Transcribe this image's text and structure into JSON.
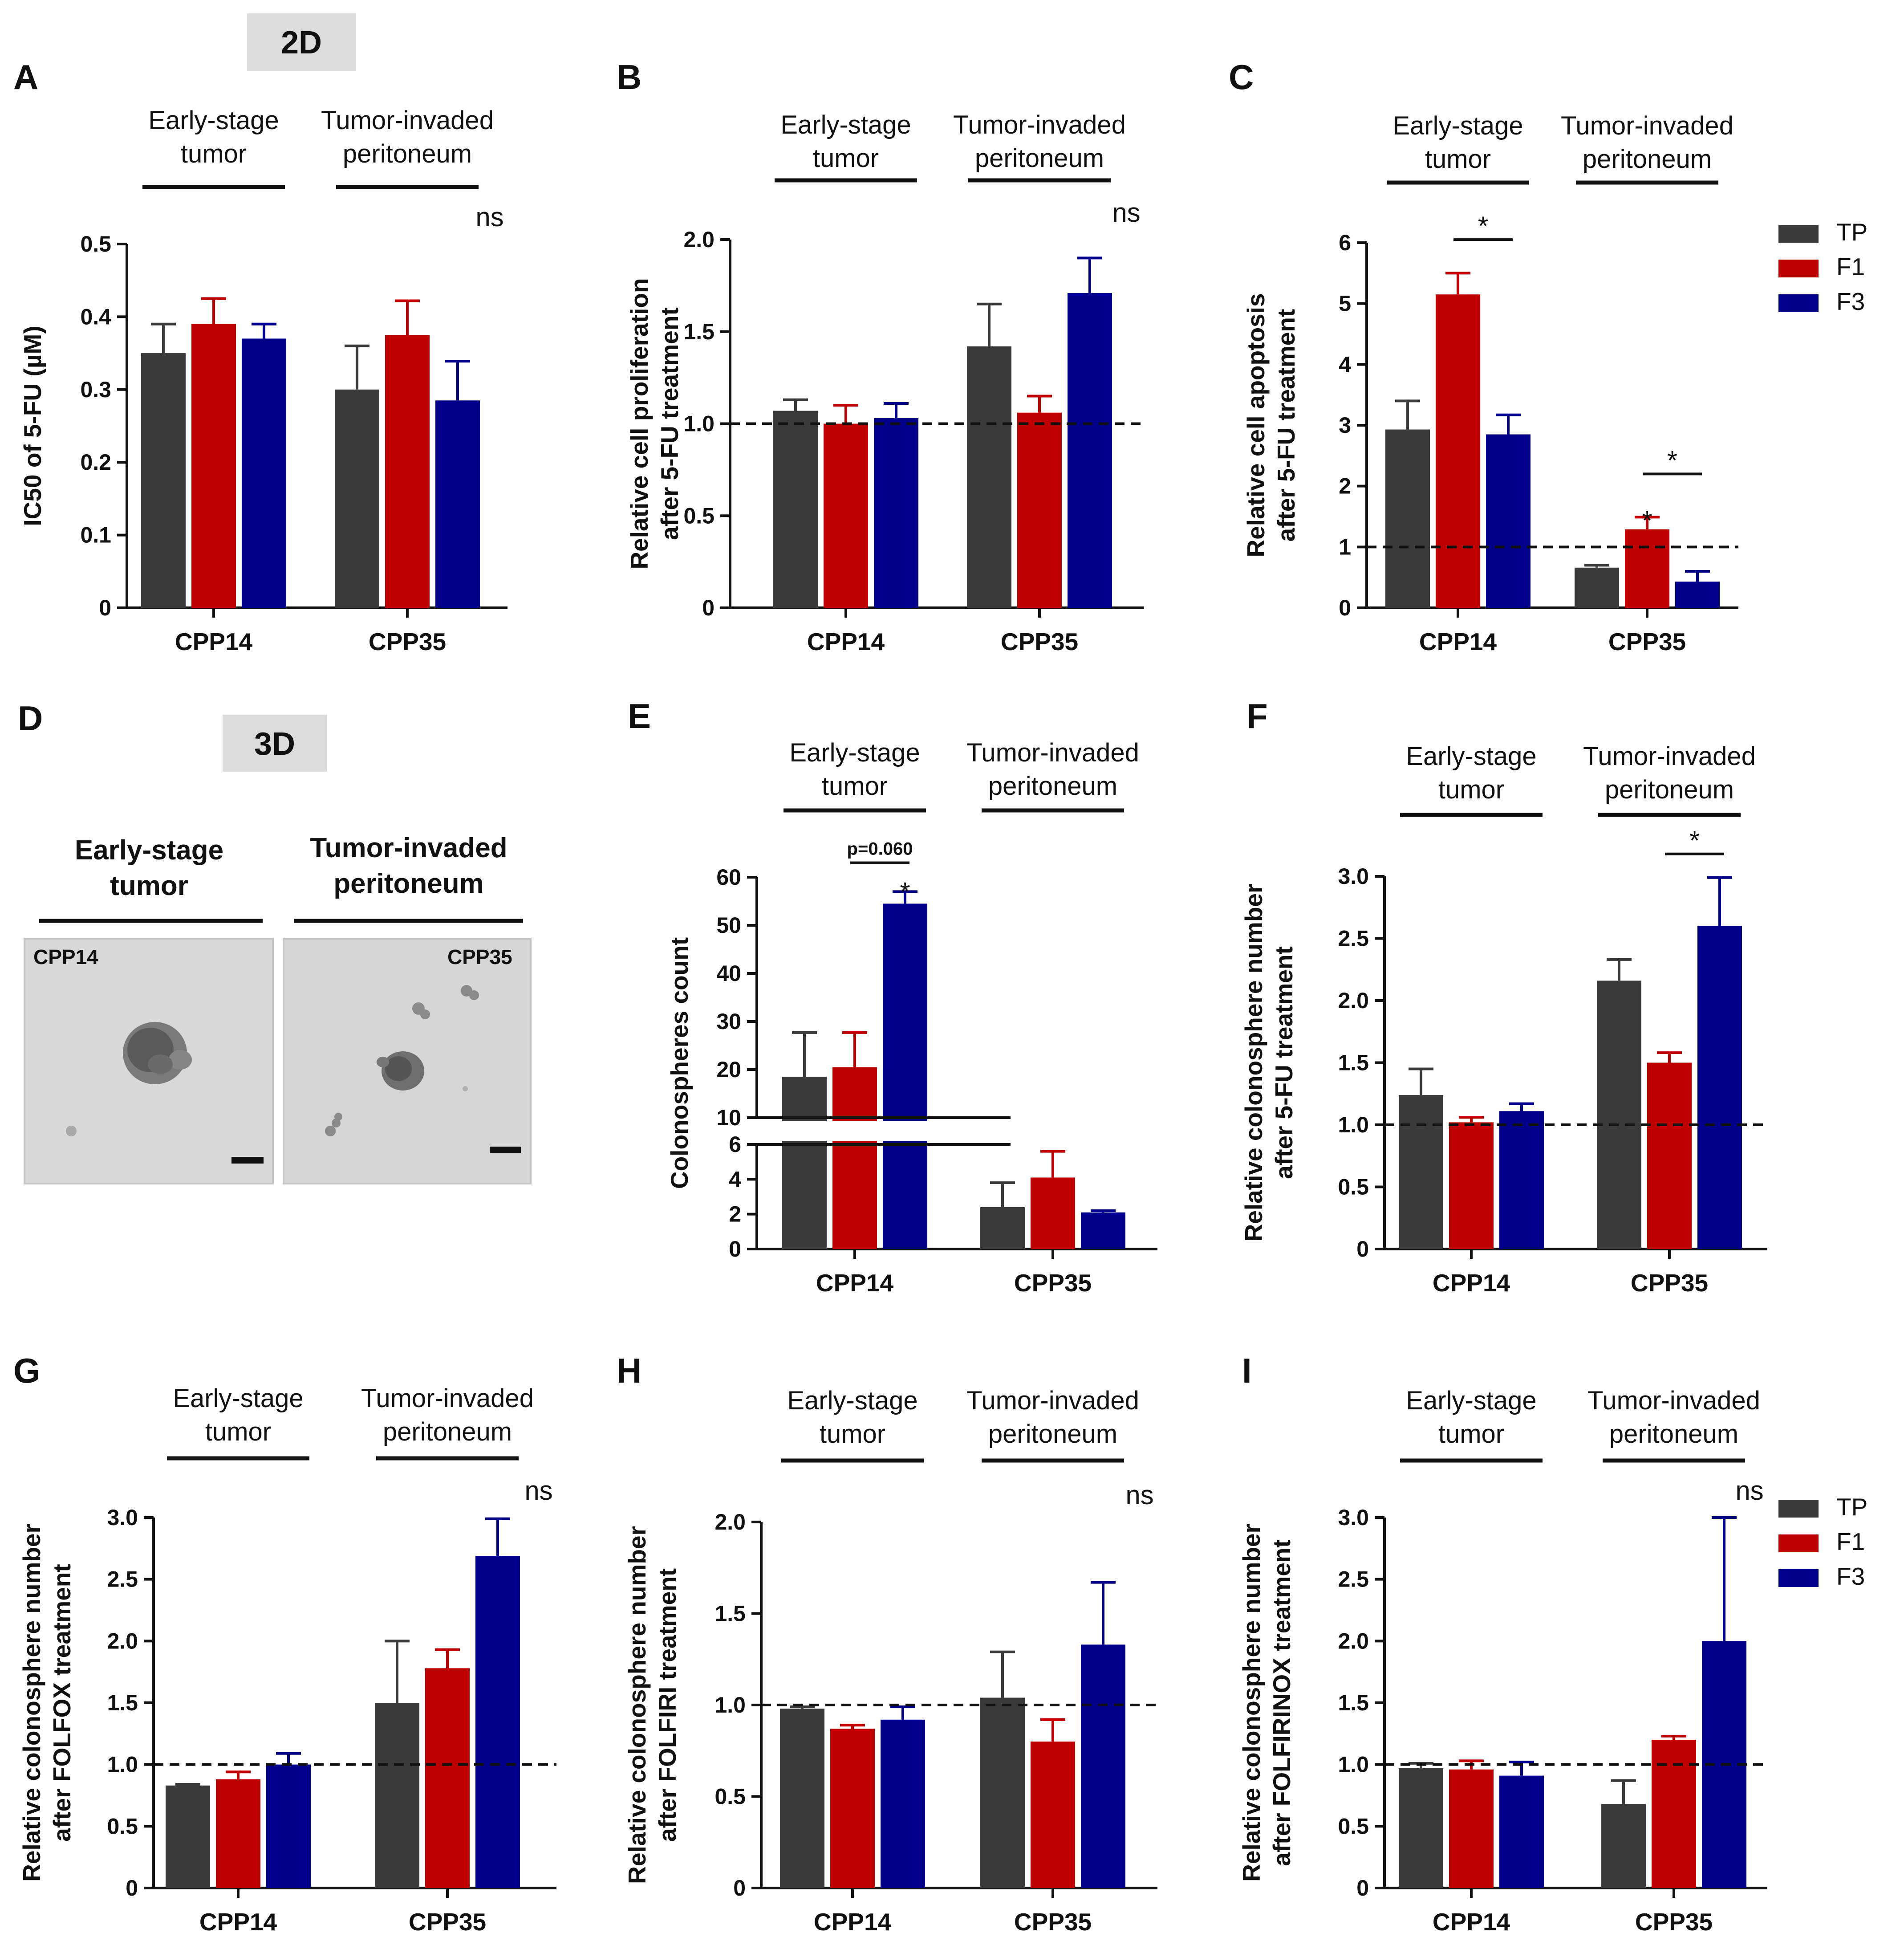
{
  "figure": {
    "mode_2d": "2D",
    "mode_3d": "3D",
    "group_early_l1": "Early-stage",
    "group_early_l2": "tumor",
    "group_invaded_l1": "Tumor-invaded",
    "group_invaded_l2": "peritoneum",
    "legend": [
      {
        "label": "TP",
        "color": "#3a3a3a"
      },
      {
        "label": "F1",
        "color": "#c00000"
      },
      {
        "label": "F3",
        "color": "#00008b"
      }
    ],
    "colors": {
      "TP": "#3a3a3a",
      "F1": "#c00000",
      "F3": "#00008b"
    }
  },
  "panel_d": {
    "letter": "D",
    "col1_l1": "Early-stage",
    "col1_l2": "tumor",
    "col2_l1": "Tumor-invaded",
    "col2_l2": "peritoneum",
    "image1_label": "CPP14",
    "image2_label": "CPP35"
  },
  "chart_data": [
    {
      "panel": "A",
      "type": "bar",
      "categories": [
        "CPP14",
        "CPP35"
      ],
      "series": [
        {
          "name": "TP",
          "values": [
            0.35,
            0.3
          ],
          "errors": [
            0.04,
            0.06
          ]
        },
        {
          "name": "F1",
          "values": [
            0.39,
            0.375
          ],
          "errors": [
            0.035,
            0.047
          ]
        },
        {
          "name": "F3",
          "values": [
            0.37,
            0.285
          ],
          "errors": [
            0.02,
            0.054
          ]
        }
      ],
      "ylabel": "IC50 of 5-FU (µM)",
      "ylim": [
        0,
        0.5
      ],
      "yticks": [
        {
          "v": 0,
          "t": "0"
        },
        {
          "v": 0.1,
          "t": "0.1"
        },
        {
          "v": 0.2,
          "t": "0.2"
        },
        {
          "v": 0.3,
          "t": "0.3"
        },
        {
          "v": 0.4,
          "t": "0.4"
        },
        {
          "v": 0.5,
          "t": "0.5"
        }
      ],
      "refline": null,
      "annotations": [
        {
          "type": "text",
          "text": "ns",
          "group": 1
        }
      ]
    },
    {
      "panel": "B",
      "type": "bar",
      "categories": [
        "CPP14",
        "CPP35"
      ],
      "series": [
        {
          "name": "TP",
          "values": [
            1.07,
            1.42
          ],
          "errors": [
            0.06,
            0.23
          ]
        },
        {
          "name": "F1",
          "values": [
            1.0,
            1.06
          ],
          "errors": [
            0.1,
            0.09
          ]
        },
        {
          "name": "F3",
          "values": [
            1.03,
            1.71
          ],
          "errors": [
            0.08,
            0.19
          ]
        }
      ],
      "ylabel": "Relative cell proliferation\nafter 5-FU treatment",
      "ylim": [
        0,
        2.0
      ],
      "yticks": [
        {
          "v": 0,
          "t": "0"
        },
        {
          "v": 0.5,
          "t": "0.5"
        },
        {
          "v": 1.0,
          "t": "1.0"
        },
        {
          "v": 1.5,
          "t": "1.5"
        },
        {
          "v": 2.0,
          "t": "2.0"
        }
      ],
      "refline": 1.0,
      "annotations": [
        {
          "type": "text",
          "text": "ns",
          "group": 1
        }
      ]
    },
    {
      "panel": "C",
      "type": "bar",
      "categories": [
        "CPP14",
        "CPP35"
      ],
      "series": [
        {
          "name": "TP",
          "values": [
            2.93,
            0.66
          ],
          "errors": [
            0.47,
            0.04
          ]
        },
        {
          "name": "F1",
          "values": [
            5.15,
            1.29
          ],
          "errors": [
            0.35,
            0.2
          ]
        },
        {
          "name": "F3",
          "values": [
            2.85,
            0.43
          ],
          "errors": [
            0.32,
            0.17
          ]
        }
      ],
      "ylabel": "Relative cell apoptosis\nafter 5-FU treatment",
      "ylim": [
        0,
        6
      ],
      "yticks": [
        {
          "v": 0,
          "t": "0"
        },
        {
          "v": 1,
          "t": "1"
        },
        {
          "v": 2,
          "t": "2"
        },
        {
          "v": 3,
          "t": "3"
        },
        {
          "v": 4,
          "t": "4"
        },
        {
          "v": 5,
          "t": "5"
        },
        {
          "v": 6,
          "t": "6"
        }
      ],
      "refline": 1.0,
      "annotations": [
        {
          "type": "bracket",
          "text": "*",
          "group": 0,
          "from": 1,
          "to": 2,
          "y": 6.05
        },
        {
          "type": "star",
          "text": "*",
          "group": 1,
          "bar": 1,
          "y": 1.52
        },
        {
          "type": "bracket",
          "text": "*",
          "group": 1,
          "from": 1,
          "to": 2,
          "y": 2.2
        }
      ]
    },
    {
      "panel": "E",
      "type": "bar",
      "categories": [
        "CPP14",
        "CPP35"
      ],
      "series": [
        {
          "name": "TP",
          "values": [
            18.5,
            2.4
          ],
          "errors": [
            9.2,
            1.4
          ]
        },
        {
          "name": "F1",
          "values": [
            20.5,
            4.1
          ],
          "errors": [
            7.2,
            1.5
          ]
        },
        {
          "name": "F3",
          "values": [
            54.5,
            2.1
          ],
          "errors": [
            2.5,
            0.1
          ]
        }
      ],
      "ylabel": "Colonospheres count",
      "broken_axis": {
        "lower": [
          0,
          6
        ],
        "upper": [
          10,
          60
        ]
      },
      "yticks_lower": [
        {
          "v": 0,
          "t": "0"
        },
        {
          "v": 2,
          "t": "2"
        },
        {
          "v": 4,
          "t": "4"
        },
        {
          "v": 6,
          "t": "6"
        }
      ],
      "yticks_upper": [
        {
          "v": 10,
          "t": "10"
        },
        {
          "v": 20,
          "t": "20"
        },
        {
          "v": 30,
          "t": "30"
        },
        {
          "v": 40,
          "t": "40"
        },
        {
          "v": 50,
          "t": "50"
        },
        {
          "v": 60,
          "t": "60"
        }
      ],
      "annotations": [
        {
          "type": "bracket",
          "text": "p=0.060",
          "group": 0,
          "from": 1,
          "to": 2,
          "y": 63
        },
        {
          "type": "star",
          "text": "*",
          "group": 0,
          "bar": 2,
          "y": 58
        }
      ]
    },
    {
      "panel": "F",
      "type": "bar",
      "categories": [
        "CPP14",
        "CPP35"
      ],
      "series": [
        {
          "name": "TP",
          "values": [
            1.24,
            2.16
          ],
          "errors": [
            0.21,
            0.17
          ]
        },
        {
          "name": "F1",
          "values": [
            1.02,
            1.5
          ],
          "errors": [
            0.04,
            0.08
          ]
        },
        {
          "name": "F3",
          "values": [
            1.11,
            2.6
          ],
          "errors": [
            0.06,
            0.39
          ]
        }
      ],
      "ylabel": "Relative  colonosphere number\nafter 5-FU treatment",
      "ylim": [
        0,
        3.0
      ],
      "yticks": [
        {
          "v": 0,
          "t": "0"
        },
        {
          "v": 0.5,
          "t": "0.5"
        },
        {
          "v": 1.0,
          "t": "1.0"
        },
        {
          "v": 1.5,
          "t": "1.5"
        },
        {
          "v": 2.0,
          "t": "2.0"
        },
        {
          "v": 2.5,
          "t": "2.5"
        },
        {
          "v": 3.0,
          "t": "3.0"
        }
      ],
      "refline": 1.0,
      "annotations": [
        {
          "type": "bracket",
          "text": "*",
          "group": 1,
          "from": 1,
          "to": 2,
          "y": 3.18
        }
      ]
    },
    {
      "panel": "G",
      "type": "bar",
      "categories": [
        "CPP14",
        "CPP35"
      ],
      "series": [
        {
          "name": "TP",
          "values": [
            0.83,
            1.5
          ],
          "errors": [
            0.01,
            0.5
          ]
        },
        {
          "name": "F1",
          "values": [
            0.88,
            1.78
          ],
          "errors": [
            0.06,
            0.15
          ]
        },
        {
          "name": "F3",
          "values": [
            1.0,
            2.69
          ],
          "errors": [
            0.09,
            0.3
          ]
        }
      ],
      "ylabel": "Relative colonosphere number\nafter FOLFOX treatment",
      "ylim": [
        0,
        3.0
      ],
      "yticks": [
        {
          "v": 0,
          "t": "0"
        },
        {
          "v": 0.5,
          "t": "0.5"
        },
        {
          "v": 1.0,
          "t": "1.0"
        },
        {
          "v": 1.5,
          "t": "1.5"
        },
        {
          "v": 2.0,
          "t": "2.0"
        },
        {
          "v": 2.5,
          "t": "2.5"
        },
        {
          "v": 3.0,
          "t": "3.0"
        }
      ],
      "refline": 1.0,
      "annotations": [
        {
          "type": "text",
          "text": "ns",
          "group": 1
        }
      ]
    },
    {
      "panel": "H",
      "type": "bar",
      "categories": [
        "CPP14",
        "CPP35"
      ],
      "series": [
        {
          "name": "TP",
          "values": [
            0.98,
            1.04
          ],
          "errors": [
            0.01,
            0.25
          ]
        },
        {
          "name": "F1",
          "values": [
            0.87,
            0.8
          ],
          "errors": [
            0.02,
            0.12
          ]
        },
        {
          "name": "F3",
          "values": [
            0.92,
            1.33
          ],
          "errors": [
            0.07,
            0.34
          ]
        }
      ],
      "ylabel": "Relative colonosphere number\nafter FOLFIRI treatment",
      "ylim": [
        0,
        2.0
      ],
      "yticks": [
        {
          "v": 0,
          "t": "0"
        },
        {
          "v": 0.5,
          "t": "0.5"
        },
        {
          "v": 1.0,
          "t": "1.0"
        },
        {
          "v": 1.5,
          "t": "1.5"
        },
        {
          "v": 2.0,
          "t": "2.0"
        }
      ],
      "refline": 1.0,
      "annotations": [
        {
          "type": "text",
          "text": "ns",
          "group": 1
        }
      ]
    },
    {
      "panel": "I",
      "type": "bar",
      "categories": [
        "CPP14",
        "CPP35"
      ],
      "series": [
        {
          "name": "TP",
          "values": [
            0.97,
            0.68
          ],
          "errors": [
            0.04,
            0.19
          ]
        },
        {
          "name": "F1",
          "values": [
            0.96,
            1.2
          ],
          "errors": [
            0.07,
            0.03
          ]
        },
        {
          "name": "F3",
          "values": [
            0.91,
            2.0
          ],
          "errors": [
            0.11,
            1.0
          ]
        }
      ],
      "ylabel": "Relative colonosphere number\nafter FOLFIRINOX treatment",
      "ylim": [
        0,
        3.0
      ],
      "yticks": [
        {
          "v": 0,
          "t": "0"
        },
        {
          "v": 0.5,
          "t": "0.5"
        },
        {
          "v": 1.0,
          "t": "1.0"
        },
        {
          "v": 1.5,
          "t": "1.5"
        },
        {
          "v": 2.0,
          "t": "2.0"
        },
        {
          "v": 2.5,
          "t": "2.5"
        },
        {
          "v": 3.0,
          "t": "3.0"
        }
      ],
      "refline": 1.0,
      "annotations": [
        {
          "type": "text",
          "text": "ns",
          "group": 1
        }
      ]
    }
  ]
}
